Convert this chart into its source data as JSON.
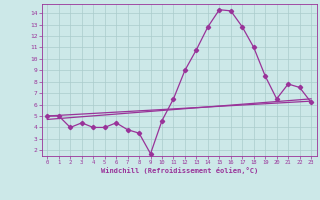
{
  "background_color": "#cce8e8",
  "line_color": "#993399",
  "grid_color": "#aacccc",
  "xlabel": "Windchill (Refroidissement éolien,°C)",
  "x_ticks": [
    0,
    1,
    2,
    3,
    4,
    5,
    6,
    7,
    8,
    9,
    10,
    11,
    12,
    13,
    14,
    15,
    16,
    17,
    18,
    19,
    20,
    21,
    22,
    23
  ],
  "ylim": [
    1.5,
    14.8
  ],
  "xlim": [
    -0.5,
    23.5
  ],
  "yticks": [
    2,
    3,
    4,
    5,
    6,
    7,
    8,
    9,
    10,
    11,
    12,
    13,
    14
  ],
  "curve1_x": [
    0,
    1,
    2,
    3,
    4,
    5,
    6,
    7,
    8,
    9,
    10,
    11,
    12,
    13,
    14,
    15,
    16,
    17,
    18,
    19,
    20,
    21,
    22,
    23
  ],
  "curve1_y": [
    5.0,
    5.0,
    4.0,
    4.4,
    4.0,
    4.0,
    4.4,
    3.8,
    3.5,
    1.7,
    4.6,
    6.5,
    9.0,
    10.8,
    12.8,
    14.3,
    14.2,
    12.8,
    11.0,
    8.5,
    6.5,
    7.8,
    7.5,
    6.2
  ],
  "curve2_x": [
    0,
    23
  ],
  "curve2_y": [
    4.7,
    6.5
  ],
  "curve3_x": [
    0,
    23
  ],
  "curve3_y": [
    5.0,
    6.3
  ],
  "marker": "D",
  "markersize": 2.2,
  "linewidth": 0.9
}
